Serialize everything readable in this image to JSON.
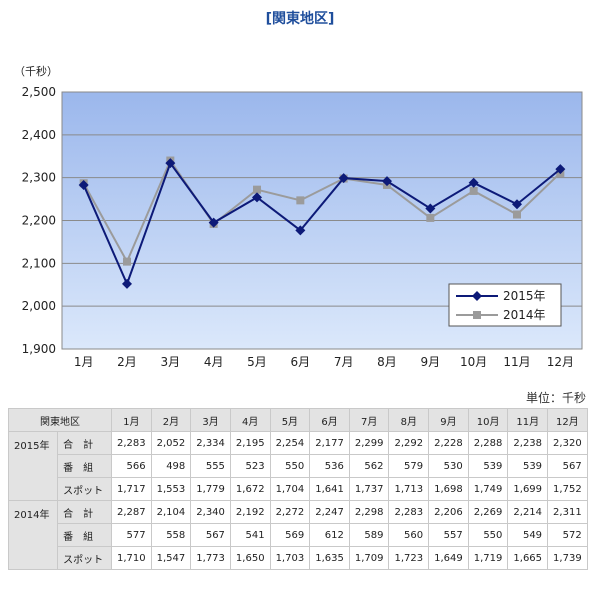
{
  "title": "[関東地区]",
  "unit_label": "単位：千秒",
  "chart_data": {
    "type": "line",
    "y_unit": "（千秒）",
    "categories": [
      "1月",
      "2月",
      "3月",
      "4月",
      "5月",
      "6月",
      "7月",
      "8月",
      "9月",
      "10月",
      "11月",
      "12月"
    ],
    "ylim": [
      1900,
      2500
    ],
    "yticks": [
      "1,900",
      "2,000",
      "2,100",
      "2,200",
      "2,300",
      "2,400",
      "2,500"
    ],
    "grid": true,
    "legend_position": "bottom-right",
    "series": [
      {
        "name": "2015年",
        "values": [
          2283,
          2052,
          2334,
          2195,
          2254,
          2177,
          2299,
          2292,
          2228,
          2288,
          2238,
          2320
        ],
        "color": "#0d1a78",
        "marker": "diamond"
      },
      {
        "name": "2014年",
        "values": [
          2287,
          2104,
          2340,
          2192,
          2272,
          2247,
          2298,
          2283,
          2206,
          2269,
          2214,
          2311
        ],
        "color": "#9b9b9b",
        "marker": "square"
      }
    ]
  },
  "table": {
    "header": [
      "関東地区",
      "1月",
      "2月",
      "3月",
      "4月",
      "5月",
      "6月",
      "7月",
      "8月",
      "9月",
      "10月",
      "11月",
      "12月"
    ],
    "groups": [
      {
        "year": "2015年",
        "rows": [
          {
            "label": "合　計",
            "values": [
              "2,283",
              "2,052",
              "2,334",
              "2,195",
              "2,254",
              "2,177",
              "2,299",
              "2,292",
              "2,228",
              "2,288",
              "2,238",
              "2,320"
            ]
          },
          {
            "label": "番　組",
            "values": [
              "566",
              "498",
              "555",
              "523",
              "550",
              "536",
              "562",
              "579",
              "530",
              "539",
              "539",
              "567"
            ]
          },
          {
            "label": "スポット",
            "values": [
              "1,717",
              "1,553",
              "1,779",
              "1,672",
              "1,704",
              "1,641",
              "1,737",
              "1,713",
              "1,698",
              "1,749",
              "1,699",
              "1,752"
            ]
          }
        ]
      },
      {
        "year": "2014年",
        "rows": [
          {
            "label": "合　計",
            "values": [
              "2,287",
              "2,104",
              "2,340",
              "2,192",
              "2,272",
              "2,247",
              "2,298",
              "2,283",
              "2,206",
              "2,269",
              "2,214",
              "2,311"
            ]
          },
          {
            "label": "番　組",
            "values": [
              "577",
              "558",
              "567",
              "541",
              "569",
              "612",
              "589",
              "560",
              "557",
              "550",
              "549",
              "572"
            ]
          },
          {
            "label": "スポット",
            "values": [
              "1,710",
              "1,547",
              "1,773",
              "1,650",
              "1,703",
              "1,635",
              "1,709",
              "1,723",
              "1,649",
              "1,719",
              "1,665",
              "1,739"
            ]
          }
        ]
      }
    ]
  }
}
